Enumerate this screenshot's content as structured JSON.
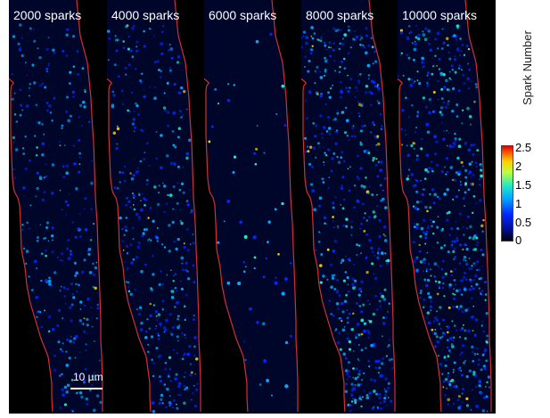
{
  "panels": [
    {
      "title": "2000 sparks",
      "level": 0.25
    },
    {
      "title": "4000 sparks",
      "level": 0.45
    },
    {
      "title": "6000 sparks",
      "level": 0.65
    },
    {
      "title": "8000 sparks",
      "level": 0.82
    },
    {
      "title": "10000 sparks",
      "level": 1.0
    }
  ],
  "scale_bar": {
    "label": "10 µm"
  },
  "colorbar": {
    "label": "Spark Number",
    "ticks": [
      "2.5",
      "2",
      "1.5",
      "1",
      "0.5",
      "0"
    ],
    "colors": [
      "#000000",
      "#0028ff",
      "#00a8ff",
      "#20e8c8",
      "#ffd000",
      "#e00000"
    ]
  },
  "outline_color": "#d23030"
}
